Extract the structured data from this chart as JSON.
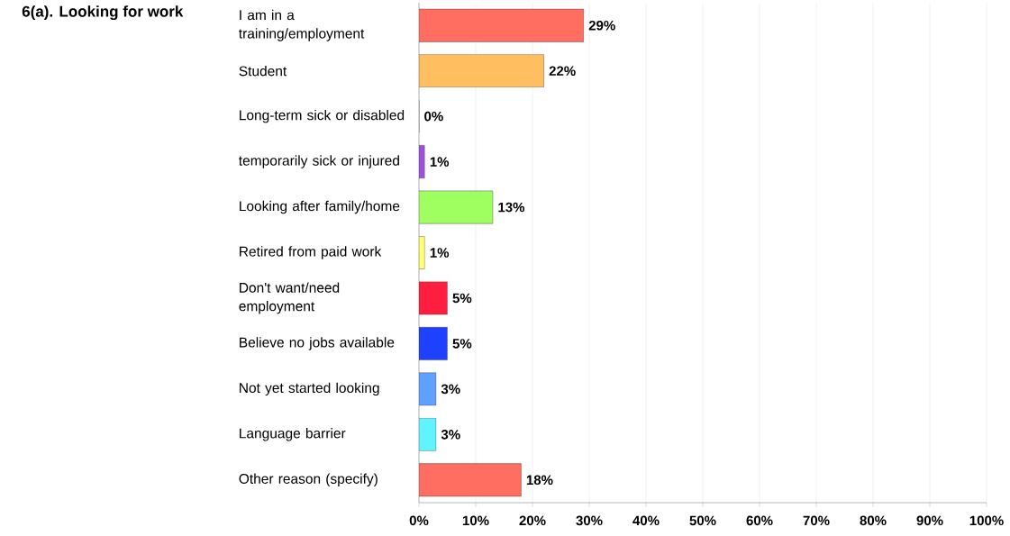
{
  "chart_data": {
    "type": "bar",
    "orientation": "horizontal",
    "title": "6(a). Looking for work",
    "categories": [
      "I am in a training/employment",
      "Student",
      "Long-term sick or disabled",
      "temporarily sick or injured",
      "Looking after family/home",
      "Retired from paid work",
      "Don't want/need employment",
      "Believe no jobs available",
      "Not yet started looking",
      "Language barrier",
      "Other reason  (specify)"
    ],
    "values": [
      29,
      22,
      0,
      1,
      13,
      1,
      5,
      5,
      3,
      3,
      18
    ],
    "colors": [
      "#ff6e60",
      "#ffbe60",
      "#c0c0c0",
      "#a050e0",
      "#a0ff60",
      "#ffff70",
      "#ff1e40",
      "#1e40ff",
      "#60a0ff",
      "#60f4ff",
      "#ff6e60"
    ],
    "value_labels": [
      "29%",
      "22%",
      "0%",
      "1%",
      "13%",
      "1%",
      "5%",
      "5%",
      "3%",
      "3%",
      "18%"
    ],
    "xlim": [
      0,
      100
    ],
    "xticks": [
      {
        "value": 0,
        "label": "0%"
      },
      {
        "value": 10,
        "label": "10%"
      },
      {
        "value": 20,
        "label": "20%"
      },
      {
        "value": 30,
        "label": "30%"
      },
      {
        "value": 40,
        "label": "40%"
      },
      {
        "value": 50,
        "label": "50%"
      },
      {
        "value": 60,
        "label": "60%"
      },
      {
        "value": 70,
        "label": "70%"
      },
      {
        "value": 80,
        "label": "80%"
      },
      {
        "value": 90,
        "label": "90%"
      },
      {
        "value": 100,
        "label": "100%"
      }
    ],
    "grid": "x"
  }
}
